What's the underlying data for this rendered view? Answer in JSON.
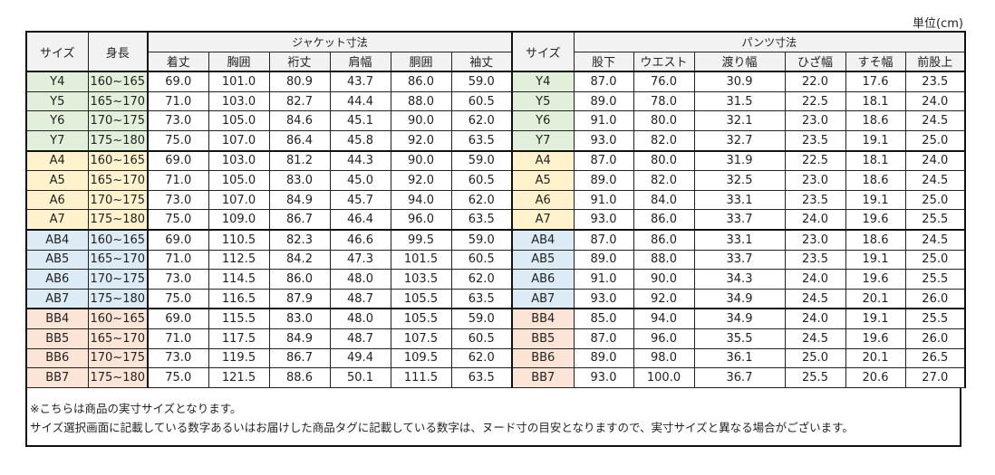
{
  "unit_label": "単位(cm)",
  "header": {
    "size": "サイズ",
    "height": "身長",
    "jacket_group": "ジャケット寸法",
    "jacket_cols": [
      "着丈",
      "胸囲",
      "裄丈",
      "肩幅",
      "胴囲",
      "袖丈"
    ],
    "pants_size": "サイズ",
    "pants_group": "パンツ寸法",
    "pants_cols": [
      "股下",
      "ウエスト",
      "渡り幅",
      "ひざ幅",
      "すそ幅",
      "前股上"
    ]
  },
  "group_colors": {
    "Y": "#e2efda",
    "A": "#fff2cc",
    "AB": "#ddebf7",
    "BB": "#fce4d6"
  },
  "rows": [
    {
      "size": "Y4",
      "height": "160~165",
      "jacket": [
        "69.0",
        "101.0",
        "80.9",
        "43.7",
        "86.0",
        "59.0"
      ],
      "pants": [
        "87.0",
        "76.0",
        "30.9",
        "22.0",
        "17.6",
        "23.5"
      ]
    },
    {
      "size": "Y5",
      "height": "165~170",
      "jacket": [
        "71.0",
        "103.0",
        "82.7",
        "44.4",
        "88.0",
        "60.5"
      ],
      "pants": [
        "89.0",
        "78.0",
        "31.5",
        "22.5",
        "18.1",
        "24.0"
      ]
    },
    {
      "size": "Y6",
      "height": "170~175",
      "jacket": [
        "73.0",
        "105.0",
        "84.6",
        "45.1",
        "90.0",
        "62.0"
      ],
      "pants": [
        "91.0",
        "80.0",
        "32.1",
        "23.0",
        "18.6",
        "24.5"
      ]
    },
    {
      "size": "Y7",
      "height": "175~180",
      "jacket": [
        "75.0",
        "107.0",
        "86.4",
        "45.8",
        "92.0",
        "63.5"
      ],
      "pants": [
        "93.0",
        "82.0",
        "32.7",
        "23.5",
        "19.1",
        "25.0"
      ]
    },
    {
      "size": "A4",
      "height": "160~165",
      "jacket": [
        "69.0",
        "103.0",
        "81.2",
        "44.3",
        "90.0",
        "59.0"
      ],
      "pants": [
        "87.0",
        "80.0",
        "31.9",
        "22.5",
        "18.1",
        "24.0"
      ]
    },
    {
      "size": "A5",
      "height": "165~170",
      "jacket": [
        "71.0",
        "105.0",
        "83.0",
        "45.0",
        "92.0",
        "60.5"
      ],
      "pants": [
        "89.0",
        "82.0",
        "32.5",
        "23.0",
        "18.6",
        "24.5"
      ]
    },
    {
      "size": "A6",
      "height": "170~175",
      "jacket": [
        "73.0",
        "107.0",
        "84.9",
        "45.7",
        "94.0",
        "62.0"
      ],
      "pants": [
        "91.0",
        "84.0",
        "33.1",
        "23.5",
        "19.1",
        "25.0"
      ]
    },
    {
      "size": "A7",
      "height": "175~180",
      "jacket": [
        "75.0",
        "109.0",
        "86.7",
        "46.4",
        "96.0",
        "63.5"
      ],
      "pants": [
        "93.0",
        "86.0",
        "33.7",
        "24.0",
        "19.6",
        "25.5"
      ]
    },
    {
      "size": "AB4",
      "height": "160~165",
      "jacket": [
        "69.0",
        "110.5",
        "82.3",
        "46.6",
        "99.5",
        "59.0"
      ],
      "pants": [
        "87.0",
        "86.0",
        "33.1",
        "23.0",
        "18.6",
        "24.5"
      ]
    },
    {
      "size": "AB5",
      "height": "165~170",
      "jacket": [
        "71.0",
        "112.5",
        "84.2",
        "47.3",
        "101.5",
        "60.5"
      ],
      "pants": [
        "89.0",
        "88.0",
        "33.7",
        "23.5",
        "19.1",
        "25.0"
      ]
    },
    {
      "size": "AB6",
      "height": "170~175",
      "jacket": [
        "73.0",
        "114.5",
        "86.0",
        "48.0",
        "103.5",
        "62.0"
      ],
      "pants": [
        "91.0",
        "90.0",
        "34.3",
        "24.0",
        "19.6",
        "25.5"
      ]
    },
    {
      "size": "AB7",
      "height": "175~180",
      "jacket": [
        "75.0",
        "116.5",
        "87.9",
        "48.7",
        "105.5",
        "63.5"
      ],
      "pants": [
        "93.0",
        "92.0",
        "34.9",
        "24.5",
        "20.1",
        "26.0"
      ]
    },
    {
      "size": "BB4",
      "height": "160~165",
      "jacket": [
        "69.0",
        "115.5",
        "83.0",
        "48.0",
        "105.5",
        "59.0"
      ],
      "pants": [
        "85.0",
        "94.0",
        "34.9",
        "24.0",
        "19.1",
        "25.5"
      ]
    },
    {
      "size": "BB5",
      "height": "165~170",
      "jacket": [
        "71.0",
        "117.5",
        "84.9",
        "48.7",
        "107.5",
        "60.5"
      ],
      "pants": [
        "87.0",
        "96.0",
        "35.5",
        "24.5",
        "19.6",
        "26.0"
      ]
    },
    {
      "size": "BB6",
      "height": "170~175",
      "jacket": [
        "73.0",
        "119.5",
        "86.7",
        "49.4",
        "109.5",
        "62.0"
      ],
      "pants": [
        "89.0",
        "98.0",
        "36.1",
        "25.0",
        "20.1",
        "26.5"
      ]
    },
    {
      "size": "BB7",
      "height": "175~180",
      "jacket": [
        "75.0",
        "121.5",
        "88.6",
        "50.1",
        "111.5",
        "63.5"
      ],
      "pants": [
        "93.0",
        "100.0",
        "36.7",
        "25.5",
        "20.6",
        "27.0"
      ]
    }
  ],
  "note": {
    "line1": "※こちらは商品の実寸サイズとなります。",
    "line2": "サイズ選択画面に記載している数字あるいはお届けした商品タグに記載している数字は、ヌード寸の目安となりますので、実寸サイズと異なる場合がございます。"
  }
}
